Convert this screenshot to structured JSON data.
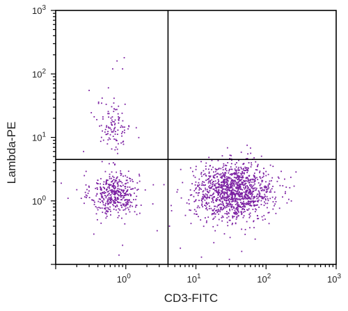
{
  "chart_data": {
    "type": "scatter",
    "xlabel": "CD3-FITC",
    "ylabel": "Lambda-PE",
    "x_scale": "log",
    "y_scale": "log",
    "xlim": [
      0.1,
      1000
    ],
    "ylim": [
      0.1,
      1000
    ],
    "x_ticks": [
      {
        "value": 1,
        "base": "10",
        "exp": "0"
      },
      {
        "value": 10,
        "base": "10",
        "exp": "1"
      },
      {
        "value": 100,
        "base": "10",
        "exp": "2"
      },
      {
        "value": 1000,
        "base": "10",
        "exp": "3"
      }
    ],
    "y_ticks": [
      {
        "value": 1,
        "base": "10",
        "exp": "0"
      },
      {
        "value": 10,
        "base": "10",
        "exp": "1"
      },
      {
        "value": 100,
        "base": "10",
        "exp": "2"
      },
      {
        "value": 1000,
        "base": "10",
        "exp": "3"
      }
    ],
    "quadrant_gates": {
      "x": 4,
      "y": 4.5
    },
    "grid": false,
    "point_color": "#7b1fa2",
    "populations": [
      {
        "center": [
          0.7,
          1.3
        ],
        "spread_log": [
          0.17,
          0.18
        ],
        "n": 420
      },
      {
        "center": [
          0.68,
          15
        ],
        "spread_log": [
          0.12,
          0.2
        ],
        "n": 110
      },
      {
        "center": [
          35,
          1.4
        ],
        "spread_log": [
          0.28,
          0.22
        ],
        "n": 1250
      }
    ],
    "sparse_points": [
      [
        0.15,
        1.1
      ],
      [
        0.3,
        55
      ],
      [
        0.75,
        160
      ],
      [
        0.9,
        120
      ],
      [
        0.95,
        180
      ],
      [
        0.65,
        120
      ],
      [
        0.8,
        0.14
      ],
      [
        0.9,
        0.2
      ],
      [
        0.35,
        0.3
      ],
      [
        0.45,
        10
      ],
      [
        0.25,
        6
      ],
      [
        0.2,
        1.5
      ],
      [
        0.28,
        1.2
      ],
      [
        4.2,
        0.4
      ],
      [
        3.5,
        1.8
      ],
      [
        6,
        0.18
      ],
      [
        12,
        0.13
      ],
      [
        30,
        0.12
      ],
      [
        45,
        0.16
      ],
      [
        60,
        6.8
      ],
      [
        55,
        5.5
      ],
      [
        90,
        0.5
      ],
      [
        12,
        2.8
      ],
      [
        8,
        0.9
      ],
      [
        5.5,
        1.5
      ],
      [
        100,
        2.5
      ],
      [
        70,
        0.25
      ],
      [
        18,
        0.22
      ],
      [
        4.5,
        0.7
      ],
      [
        0.12,
        1.9
      ]
    ]
  }
}
